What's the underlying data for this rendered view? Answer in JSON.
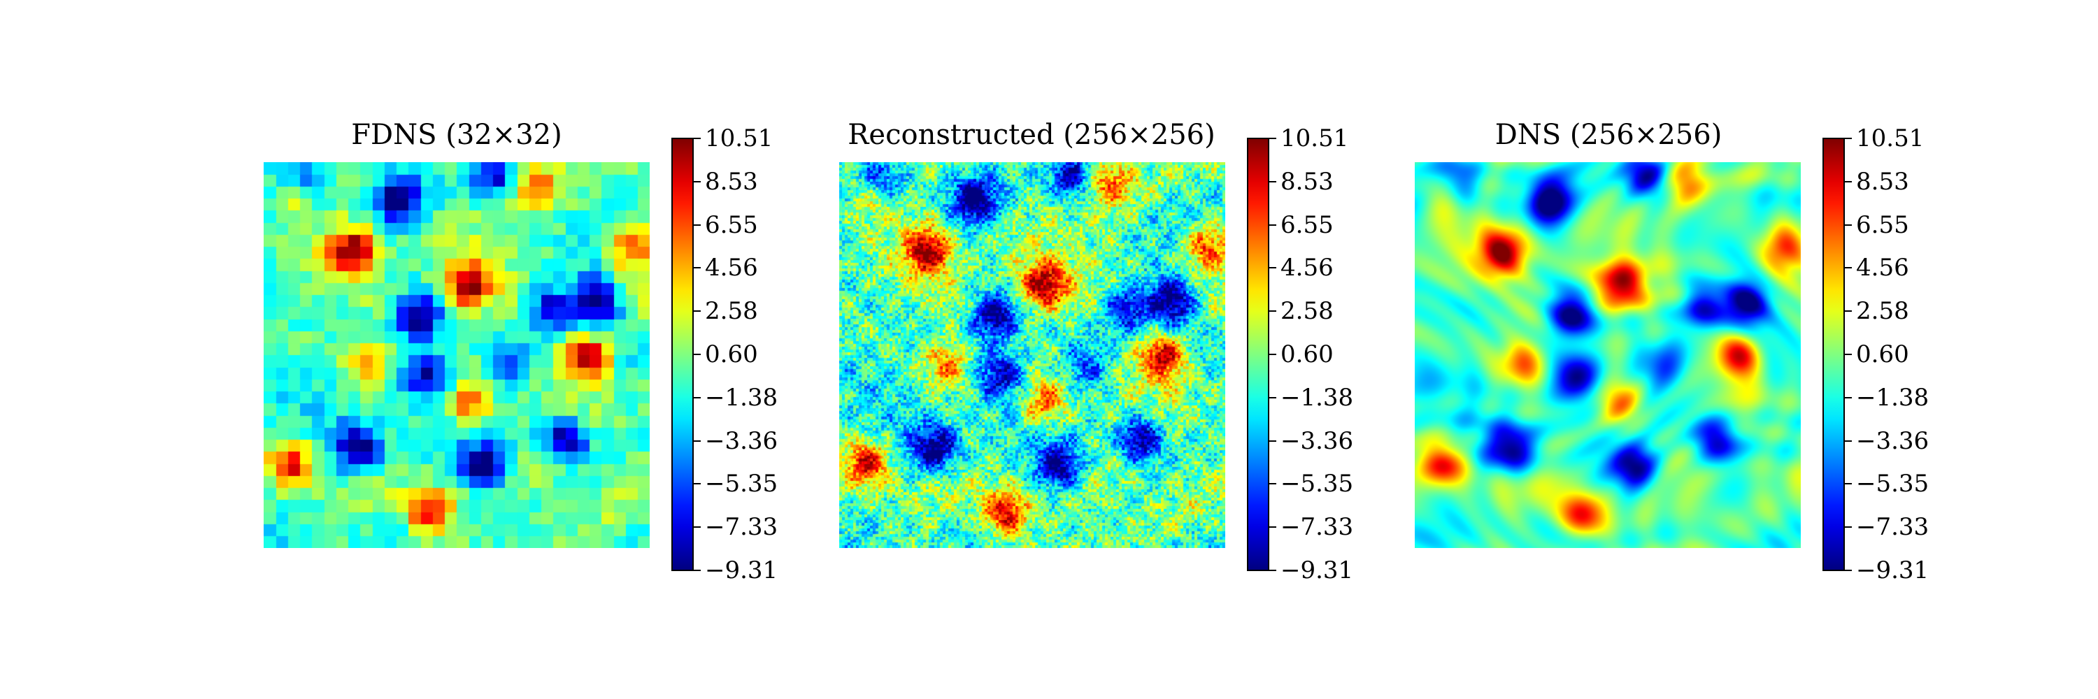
{
  "chart_data": [
    {
      "type": "heatmap",
      "title": "FDNS (32×32)",
      "grid": "32x32",
      "colormap": "jet",
      "vmin": -9.31,
      "vmax": 10.51,
      "colorbar_ticks": [
        "10.51",
        "8.53",
        "6.55",
        "4.56",
        "2.58",
        "0.60",
        "−1.38",
        "−3.36",
        "−5.35",
        "−7.33",
        "−9.31"
      ],
      "grid_lines": false,
      "axes_visible": false
    },
    {
      "type": "heatmap",
      "title": "Reconstructed (256×256)",
      "grid": "256x256",
      "colormap": "jet",
      "vmin": -9.31,
      "vmax": 10.51,
      "colorbar_ticks": [
        "10.51",
        "8.53",
        "6.55",
        "4.56",
        "2.58",
        "0.60",
        "−1.38",
        "−3.36",
        "−5.35",
        "−7.33",
        "−9.31"
      ],
      "grid_lines": false,
      "axes_visible": false
    },
    {
      "type": "heatmap",
      "title": "DNS (256×256)",
      "grid": "256x256",
      "colormap": "jet",
      "vmin": -9.31,
      "vmax": 10.51,
      "colorbar_ticks": [
        "10.51",
        "8.53",
        "6.55",
        "4.56",
        "2.58",
        "0.60",
        "−1.38",
        "−3.36",
        "−5.35",
        "−7.33",
        "−9.31"
      ],
      "grid_lines": false,
      "axes_visible": false
    }
  ]
}
